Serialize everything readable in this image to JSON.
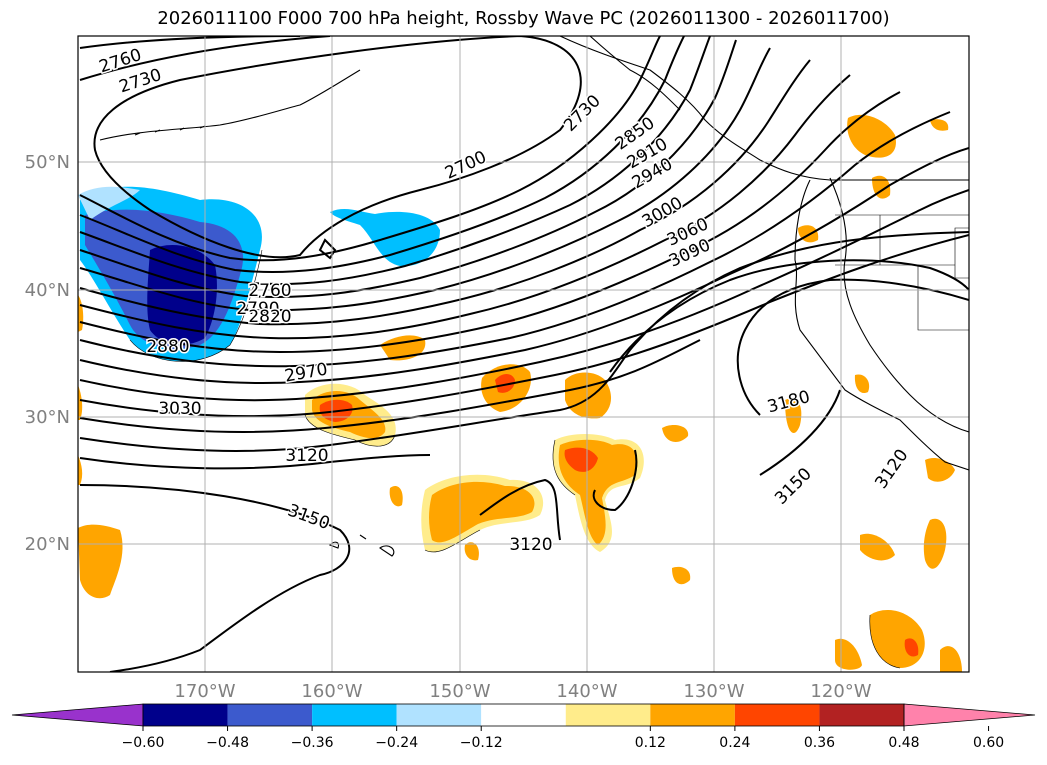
{
  "title": "2026011100 F000 700 hPa height, Rossby Wave PC (2026011300 - 2026011700)",
  "map": {
    "lat_labels": [
      "50°N",
      "40°N",
      "30°N",
      "20°N"
    ],
    "lon_labels": [
      "170°W",
      "160°W",
      "150°W",
      "140°W",
      "130°W",
      "120°W"
    ],
    "contour_labels": [
      "2760",
      "2730",
      "2730",
      "2850",
      "2910",
      "2940",
      "2700",
      "3000",
      "3060",
      "3090",
      "2760",
      "2790",
      "2820",
      "2880",
      "2970",
      "3030",
      "3120",
      "3180",
      "3150",
      "3120",
      "3150",
      "3120"
    ],
    "colors": {
      "land_outline": "#000000",
      "grid": "#b0b0b0",
      "axis_label": "#808080"
    }
  },
  "colorbar": {
    "tick_labels": [
      "−0.60",
      "−0.48",
      "−0.36",
      "−0.24",
      "−0.12",
      "0.12",
      "0.24",
      "0.36",
      "0.48",
      "0.60"
    ],
    "colors": [
      "#9932cc",
      "#00008b",
      "#3c5acd",
      "#00bfff",
      "#b0e2ff",
      "#ffffff",
      "#ffec8b",
      "#ffa500",
      "#ff4500",
      "#b22222",
      "#ff82ab"
    ]
  }
}
